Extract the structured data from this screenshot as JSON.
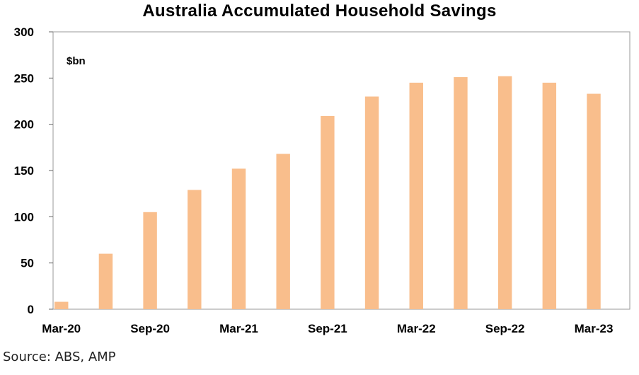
{
  "chart_data": {
    "type": "bar",
    "title": "Australia Accumulated Household Savings",
    "unit_label": "$bn",
    "ylim": [
      0,
      300
    ],
    "yticks": [
      0,
      50,
      100,
      150,
      200,
      250,
      300
    ],
    "categories": [
      "Mar-20",
      "Jun-20",
      "Sep-20",
      "Dec-20",
      "Mar-21",
      "Jun-21",
      "Sep-21",
      "Dec-21",
      "Mar-22",
      "Jun-22",
      "Sep-22",
      "Dec-22",
      "Mar-23"
    ],
    "values": [
      8,
      60,
      105,
      129,
      152,
      168,
      209,
      230,
      245,
      251,
      252,
      245,
      233
    ],
    "xtick_labels": [
      "Mar-20",
      "Sep-20",
      "Mar-21",
      "Sep-21",
      "Mar-22",
      "Sep-22",
      "Mar-23"
    ],
    "bar_color": "#F9BE8C",
    "grid": false
  },
  "source": "Source: ABS, AMP"
}
